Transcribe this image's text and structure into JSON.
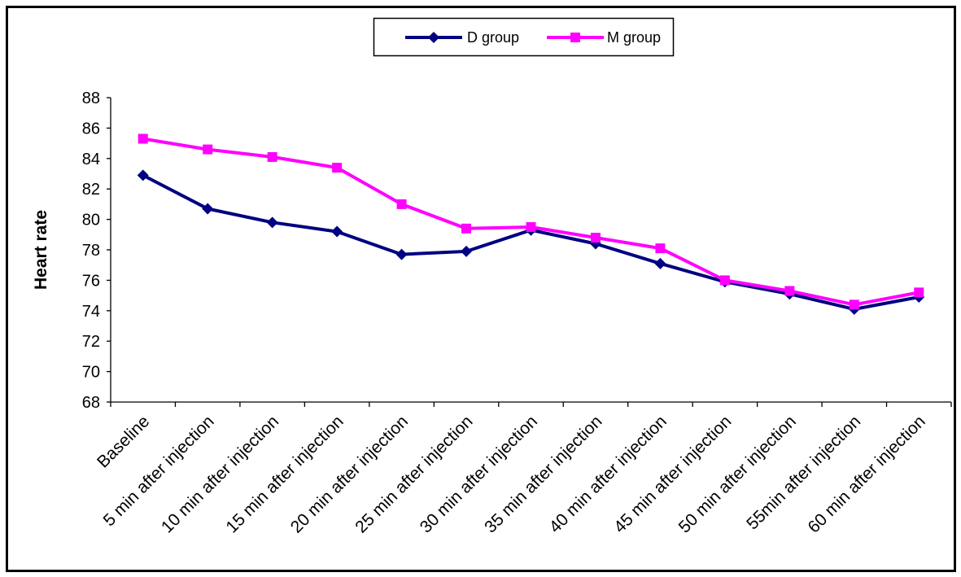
{
  "chart_data": {
    "type": "line",
    "categories": [
      "Baseline",
      "5 min after injection",
      "10 min after injection",
      "15 min after injection",
      "20 min after injection",
      "25 min after injection",
      "30 min after injection",
      "35 min after injection",
      "40 min after injection",
      "45 min after injection",
      "50 min after injection",
      "55min after injection",
      "60 min after injection"
    ],
    "series": [
      {
        "name": "D group",
        "color": "#000080",
        "marker": "diamond",
        "values": [
          82.9,
          80.7,
          79.8,
          79.2,
          77.7,
          77.9,
          79.3,
          78.4,
          77.1,
          75.9,
          75.1,
          74.1,
          74.9
        ]
      },
      {
        "name": "M group",
        "color": "#FF00FF",
        "marker": "square",
        "values": [
          85.3,
          84.6,
          84.1,
          83.4,
          81.0,
          79.4,
          79.5,
          78.8,
          78.1,
          76.0,
          75.3,
          74.4,
          75.2
        ]
      }
    ],
    "ylabel": "Heart rate",
    "ylim": [
      68,
      88
    ],
    "yticks": [
      68,
      70,
      72,
      74,
      76,
      78,
      80,
      82,
      84,
      86,
      88
    ],
    "grid": false,
    "legend_position": "top"
  }
}
